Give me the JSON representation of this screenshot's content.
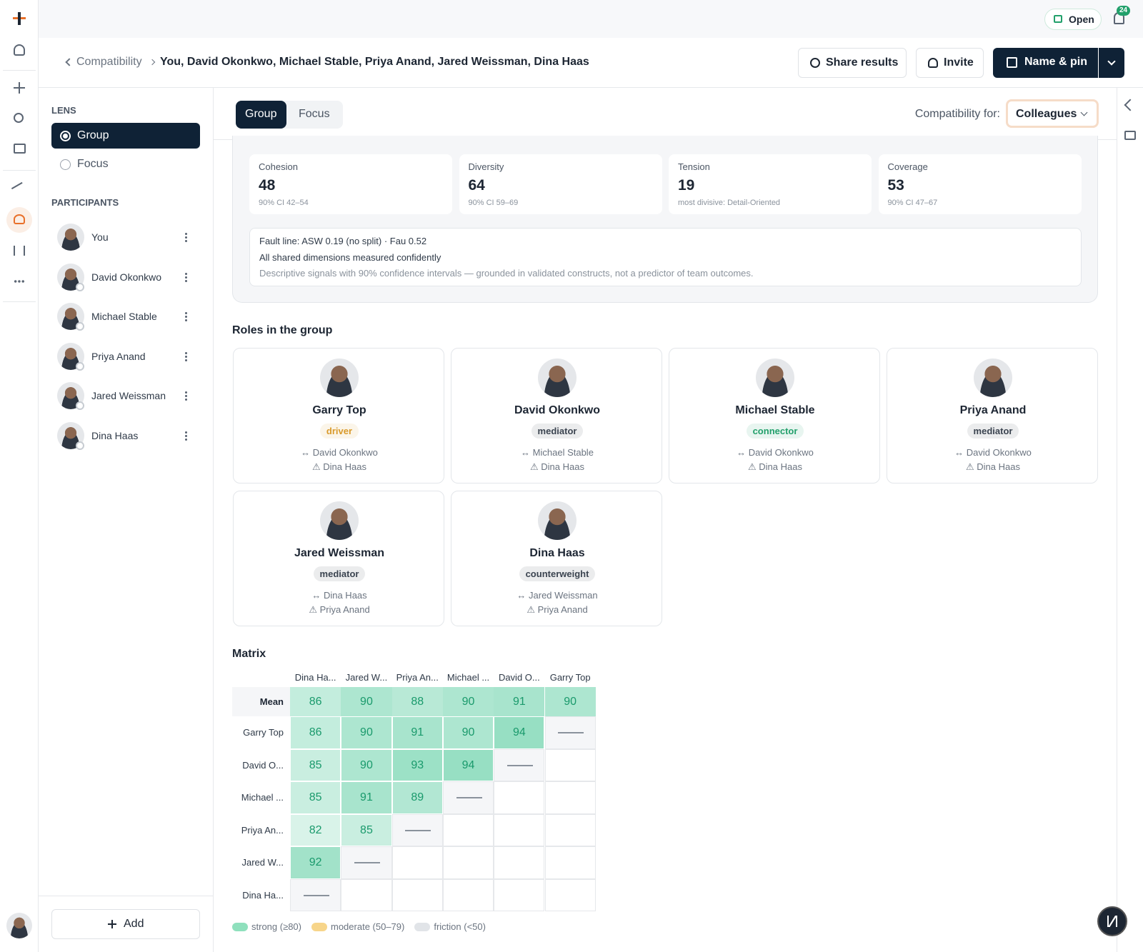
{
  "topbar": {
    "status": "Open",
    "notifications": 24
  },
  "breadcrumb": {
    "parent": "Compatibility",
    "current": "You, David Okonkwo, Michael Stable, Priya Anand, Jared Weissman, Dina Haas"
  },
  "actions": {
    "share": "Share results",
    "invite": "Invite",
    "pin": "Name & pin"
  },
  "sidebar": {
    "lens_heading": "LENS",
    "lenses": [
      "Group",
      "Focus"
    ],
    "participants_heading": "PARTICIPANTS",
    "participants": [
      "You",
      "David Okonkwo",
      "Michael Stable",
      "Priya Anand",
      "Jared Weissman",
      "Dina Haas"
    ],
    "add": "Add"
  },
  "tabs": [
    "Group",
    "Focus"
  ],
  "filter": {
    "label": "Compatibility for:",
    "value": "Colleagues"
  },
  "metrics": [
    {
      "label": "Cohesion",
      "value": 48,
      "note": "90% CI 42–54"
    },
    {
      "label": "Diversity",
      "value": 64,
      "note": "90% CI 59–69"
    },
    {
      "label": "Tension",
      "value": 19,
      "note": "most divisive: Detail-Oriented"
    },
    {
      "label": "Coverage",
      "value": 53,
      "note": "90% CI 47–67"
    }
  ],
  "fault_line": [
    "Fault line: ASW 0.19 (no split) · Fau 0.52",
    "All shared dimensions measured confidently",
    "Descriptive signals with 90% confidence intervals — grounded in validated constructs, not a predictor of team outcomes."
  ],
  "roles": {
    "title": "Roles in the group",
    "cards": [
      {
        "name": "Garry Top",
        "role": "driver",
        "color": "#d99a2b",
        "ally": "↔ David Okonkwo",
        "risk": "⚠ Dina Haas"
      },
      {
        "name": "David Okonkwo",
        "role": "mediator",
        "color": "#3b4450",
        "ally": "↔ Michael Stable",
        "risk": "⚠ Dina Haas"
      },
      {
        "name": "Michael Stable",
        "role": "connector",
        "color": "#22a06b",
        "ally": "↔ David Okonkwo",
        "risk": "⚠ Dina Haas"
      },
      {
        "name": "Priya Anand",
        "role": "mediator",
        "color": "#3b4450",
        "ally": "↔ David Okonkwo",
        "risk": "⚠ Dina Haas"
      },
      {
        "name": "Jared Weissman",
        "role": "mediator",
        "color": "#3b4450",
        "ally": "↔ Dina Haas",
        "risk": "⚠ Priya Anand"
      },
      {
        "name": "Dina Haas",
        "role": "counterweight",
        "color": "#3b4450",
        "ally": "↔ Jared Weissman",
        "risk": "⚠ Priya Anand"
      }
    ]
  },
  "matrix": {
    "title": "Matrix",
    "color": "#2fbf87",
    "text_color": "#1a9a6c",
    "columns": [
      "Dina Ha...",
      "Jared W...",
      "Priya An...",
      "Michael ...",
      "David O...",
      "Garry Top"
    ],
    "mean_label": "Mean",
    "mean": [
      86,
      90,
      88,
      90,
      91,
      90
    ],
    "rows": [
      {
        "label": "Garry Top",
        "values": [
          86,
          90,
          91,
          90,
          94
        ]
      },
      {
        "label": "David O...",
        "values": [
          85,
          90,
          93,
          94
        ]
      },
      {
        "label": "Michael ...",
        "values": [
          85,
          91,
          89
        ]
      },
      {
        "label": "Priya An...",
        "values": [
          82,
          85
        ]
      },
      {
        "label": "Jared W...",
        "values": [
          92
        ]
      },
      {
        "label": "Dina Ha...",
        "values": []
      }
    ]
  },
  "legend": [
    {
      "label": "strong (≥80)",
      "color": "#8fe0bd"
    },
    {
      "label": "moderate (50–79)",
      "color": "#f7d58a"
    },
    {
      "label": "friction (<50)",
      "color": "#e1e4e8"
    }
  ]
}
